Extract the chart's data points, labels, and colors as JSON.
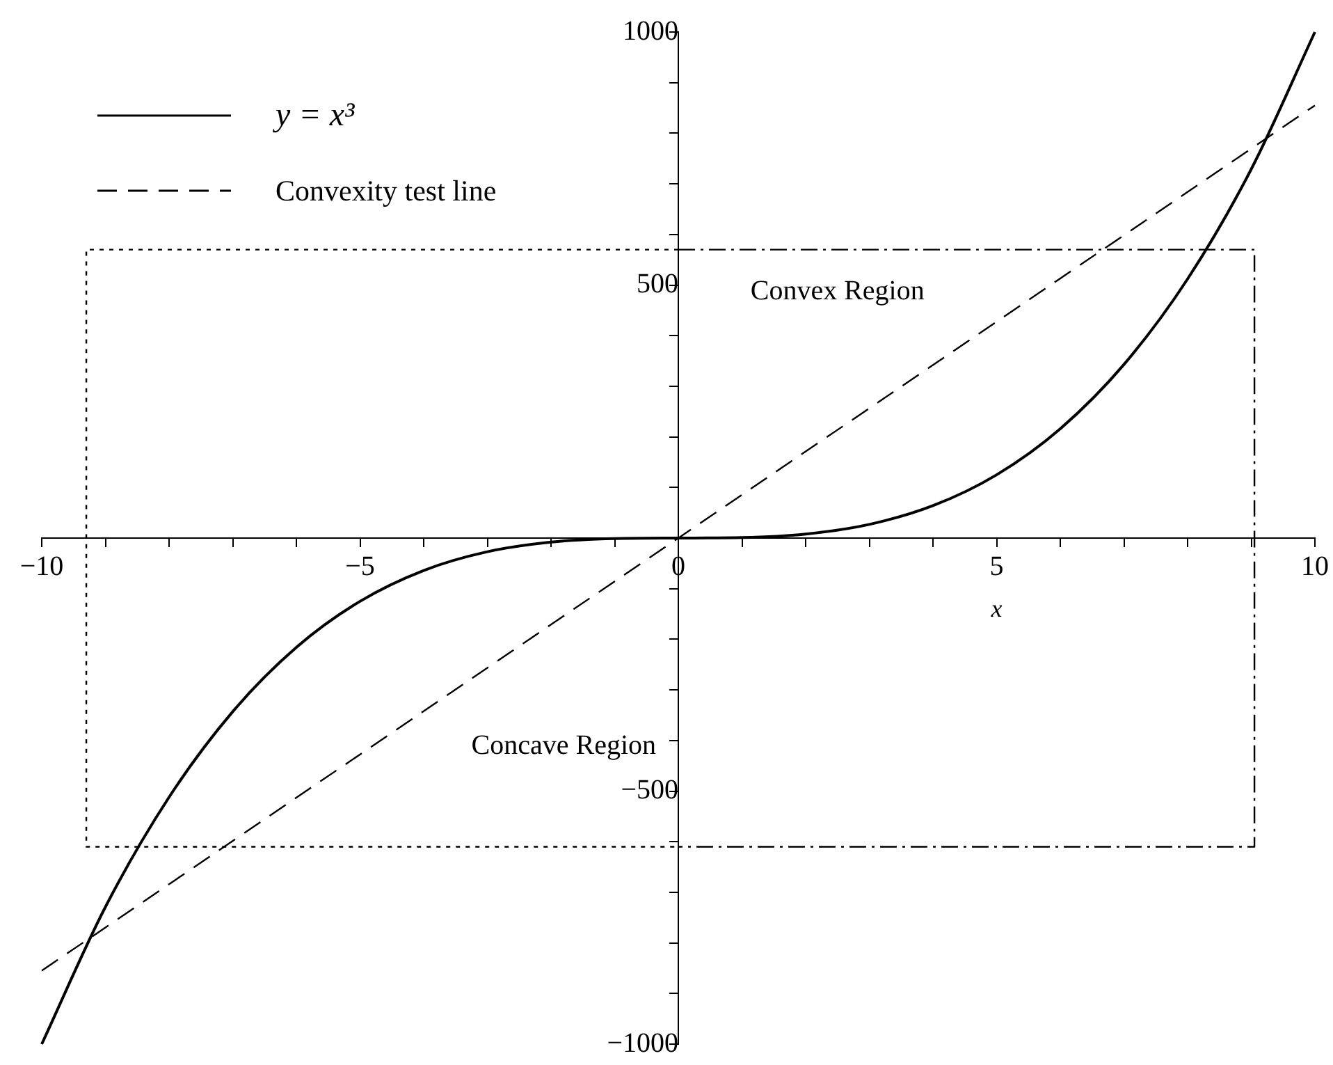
{
  "chart_data": {
    "type": "line",
    "xlabel": "x",
    "legend": "top left",
    "grid": false,
    "marker": "none",
    "xlim": [
      -10,
      10
    ],
    "ylim": [
      -1000,
      1000
    ],
    "xticks": [
      {
        "value": -10,
        "label": "−10"
      },
      {
        "value": -9,
        "label": null
      },
      {
        "value": -8,
        "label": null
      },
      {
        "value": -7,
        "label": null
      },
      {
        "value": -6,
        "label": null
      },
      {
        "value": -5,
        "label": "−5"
      },
      {
        "value": -4,
        "label": null
      },
      {
        "value": -3,
        "label": null
      },
      {
        "value": -2,
        "label": null
      },
      {
        "value": -1,
        "label": null
      },
      0,
      {
        "value": 1,
        "label": null
      },
      {
        "value": 2,
        "label": null
      },
      {
        "value": 3,
        "label": null
      },
      {
        "value": 4,
        "label": null
      },
      5,
      {
        "value": 6,
        "label": null
      },
      {
        "value": 7,
        "label": null
      },
      {
        "value": 8,
        "label": null
      },
      {
        "value": 9,
        "label": null
      },
      10
    ],
    "yticks": [
      {
        "value": -1000,
        "label": "−1000"
      },
      {
        "value": -900,
        "label": null
      },
      {
        "value": -800,
        "label": null
      },
      {
        "value": -700,
        "label": null
      },
      {
        "value": -600,
        "label": null
      },
      {
        "value": -500,
        "label": "−500"
      },
      {
        "value": -400,
        "label": null
      },
      {
        "value": -300,
        "label": null
      },
      {
        "value": -200,
        "label": null
      },
      {
        "value": -100,
        "label": null
      },
      {
        "value": 0,
        "label": null
      },
      {
        "value": 100,
        "label": null
      },
      {
        "value": 200,
        "label": null
      },
      {
        "value": 300,
        "label": null
      },
      {
        "value": 400,
        "label": null
      },
      500,
      {
        "value": 600,
        "label": null
      },
      {
        "value": 700,
        "label": null
      },
      {
        "value": 800,
        "label": null
      },
      {
        "value": 900,
        "label": null
      },
      1000
    ],
    "series": [
      {
        "name": "y = x³",
        "color": "#000000",
        "line_style": "solid",
        "x": [
          -10,
          -9,
          -8,
          -7,
          -6,
          -5,
          -4,
          -3,
          -2,
          -1,
          0,
          1,
          2,
          3,
          4,
          5,
          6,
          7,
          8,
          9,
          10
        ],
        "values": [
          -1000,
          -729,
          -512,
          -343,
          -216,
          -125,
          -64,
          -27,
          -8,
          -1,
          0,
          1,
          8,
          27,
          64,
          125,
          216,
          343,
          512,
          729,
          1000
        ]
      },
      {
        "name": "Convexity test line",
        "color": "#000000",
        "line_style": "dashed",
        "x": [
          -10,
          10
        ],
        "values": [
          -855,
          855
        ]
      },
      {
        "color": "#000000",
        "line_style": "dotted",
        "x": [
          0,
          -9.3,
          -9.3,
          0
        ],
        "values": [
          570,
          570,
          -610,
          -610
        ]
      },
      {
        "color": "#000000",
        "line_style": "dashdot",
        "x": [
          0,
          9.05,
          9.05,
          0
        ],
        "values": [
          570,
          570,
          -610,
          -610
        ]
      }
    ],
    "annotations": [
      "Convex Region",
      "Concave Region"
    ]
  }
}
